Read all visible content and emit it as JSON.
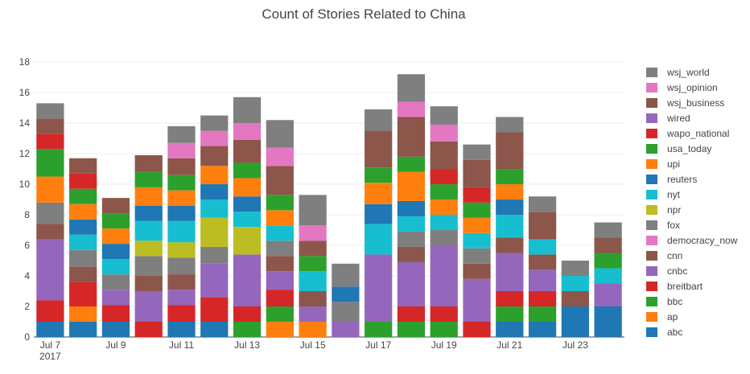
{
  "chart_data": {
    "type": "bar",
    "stacked": true,
    "title": "Count of Stories Related to China",
    "xlabel": "",
    "ylabel": "",
    "ylim": [
      0,
      18.9
    ],
    "yticks": [
      0,
      2,
      4,
      6,
      8,
      10,
      12,
      14,
      16,
      18
    ],
    "grid": "horizontal",
    "legend_position": "right",
    "categories": [
      "2017-07-07",
      "2017-07-08",
      "2017-07-09",
      "2017-07-10",
      "2017-07-11",
      "2017-07-12",
      "2017-07-13",
      "2017-07-14",
      "2017-07-15",
      "2017-07-16",
      "2017-07-17",
      "2017-07-18",
      "2017-07-19",
      "2017-07-20",
      "2017-07-21",
      "2017-07-22",
      "2017-07-23",
      "2017-07-24"
    ],
    "xtick_labels": [
      {
        "category": "2017-07-07",
        "text": "Jul 7",
        "subtext": "2017"
      },
      {
        "category": "2017-07-09",
        "text": "Jul 9",
        "subtext": ""
      },
      {
        "category": "2017-07-11",
        "text": "Jul 11",
        "subtext": ""
      },
      {
        "category": "2017-07-13",
        "text": "Jul 13",
        "subtext": ""
      },
      {
        "category": "2017-07-15",
        "text": "Jul 15",
        "subtext": ""
      },
      {
        "category": "2017-07-17",
        "text": "Jul 17",
        "subtext": ""
      },
      {
        "category": "2017-07-19",
        "text": "Jul 19",
        "subtext": ""
      },
      {
        "category": "2017-07-21",
        "text": "Jul 21",
        "subtext": ""
      },
      {
        "category": "2017-07-23",
        "text": "Jul 23",
        "subtext": ""
      }
    ],
    "series": [
      {
        "name": "abc",
        "color": "#1f77b4",
        "values": [
          1,
          1,
          1,
          0,
          1,
          1,
          0,
          0,
          0,
          0,
          0,
          0,
          0,
          0,
          1,
          1,
          2,
          2
        ]
      },
      {
        "name": "ap",
        "color": "#ff7f0e",
        "values": [
          0,
          1,
          0,
          0,
          0,
          0,
          0,
          1,
          1,
          0,
          0,
          0,
          0,
          0,
          0,
          0,
          0,
          0
        ]
      },
      {
        "name": "bbc",
        "color": "#2ca02c",
        "values": [
          0,
          0,
          0,
          0,
          0,
          0,
          1,
          1,
          0,
          0,
          1,
          1,
          1,
          0,
          1,
          1,
          0,
          0
        ]
      },
      {
        "name": "breitbart",
        "color": "#d62728",
        "values": [
          1.4,
          1.6,
          1.1,
          1,
          1.1,
          1.6,
          1,
          1.1,
          0,
          0,
          0,
          1,
          1,
          1,
          1,
          1,
          0,
          0
        ]
      },
      {
        "name": "cnbc",
        "color": "#9467bd",
        "values": [
          4,
          0,
          1,
          2,
          1,
          2.2,
          3.4,
          1.2,
          1,
          1,
          4.4,
          2.9,
          4,
          2.8,
          2.5,
          1.4,
          0,
          1.5
        ]
      },
      {
        "name": "cnn",
        "color": "#8c564b",
        "values": [
          1,
          1,
          0,
          1,
          1,
          0,
          0,
          1,
          1,
          0,
          0,
          1,
          0,
          1,
          1,
          1,
          1,
          0
        ]
      },
      {
        "name": "democracy_now",
        "color": "#e377c2",
        "values": [
          0,
          0,
          0,
          0,
          0,
          0,
          0,
          0,
          0,
          0,
          0,
          0,
          0,
          0,
          0,
          0,
          0,
          0
        ]
      },
      {
        "name": "fox",
        "color": "#7f7f7f",
        "values": [
          1.4,
          1.1,
          1,
          1.3,
          1.1,
          1.1,
          0,
          1,
          0,
          1.3,
          0,
          1,
          1,
          1,
          0,
          0,
          0,
          0
        ]
      },
      {
        "name": "npr",
        "color": "#bcbd22",
        "values": [
          0,
          0,
          0,
          1,
          1,
          1.9,
          1.8,
          0,
          0,
          0,
          0,
          0,
          0,
          0,
          0,
          0,
          0,
          0
        ]
      },
      {
        "name": "nyt",
        "color": "#17becf",
        "values": [
          0,
          1,
          1,
          1.3,
          1.4,
          1.2,
          1,
          1,
          1.3,
          0,
          2,
          1,
          1,
          1,
          1.5,
          1,
          1,
          1
        ]
      },
      {
        "name": "reuters",
        "color": "#1f77b4",
        "values": [
          0,
          1,
          1,
          1,
          1,
          1,
          1,
          0,
          0,
          1,
          1.3,
          1,
          0,
          0,
          1,
          0,
          0,
          0
        ]
      },
      {
        "name": "upi",
        "color": "#ff7f0e",
        "values": [
          1.7,
          1,
          1,
          1.2,
          1,
          1.2,
          1.2,
          1,
          0,
          0,
          1.4,
          1.9,
          1,
          1,
          1,
          0,
          0,
          0
        ]
      },
      {
        "name": "usa_today",
        "color": "#2ca02c",
        "values": [
          1.8,
          1,
          1,
          1,
          1,
          0,
          1,
          1,
          1,
          0,
          1,
          1,
          1,
          1,
          1,
          0,
          0,
          1
        ]
      },
      {
        "name": "wapo_national",
        "color": "#d62728",
        "values": [
          1,
          1,
          0,
          0,
          0,
          0,
          0,
          0,
          0,
          0,
          0,
          0,
          1,
          1,
          0,
          0,
          0,
          0
        ]
      },
      {
        "name": "wired",
        "color": "#9467bd",
        "values": [
          0,
          0,
          0,
          0,
          0,
          0,
          0,
          0,
          0,
          0,
          0,
          0,
          0,
          0,
          0,
          0,
          0,
          0
        ]
      },
      {
        "name": "wsj_business",
        "color": "#8c564b",
        "values": [
          1,
          1,
          1,
          1.1,
          1.1,
          1.3,
          1.5,
          1.9,
          1,
          0,
          2.4,
          2.6,
          1.8,
          1.8,
          2.4,
          1.8,
          0,
          1
        ]
      },
      {
        "name": "wsj_opinion",
        "color": "#e377c2",
        "values": [
          0,
          0,
          0,
          0,
          1,
          1,
          1.1,
          1.2,
          1,
          0,
          0,
          1,
          1.1,
          0,
          0,
          0,
          0,
          0
        ]
      },
      {
        "name": "wsj_world",
        "color": "#7f7f7f",
        "values": [
          1,
          0,
          0,
          0,
          1.1,
          1,
          1.7,
          1.8,
          2,
          1.5,
          1.4,
          1.8,
          1.2,
          1,
          1,
          1,
          1,
          1
        ]
      }
    ]
  }
}
